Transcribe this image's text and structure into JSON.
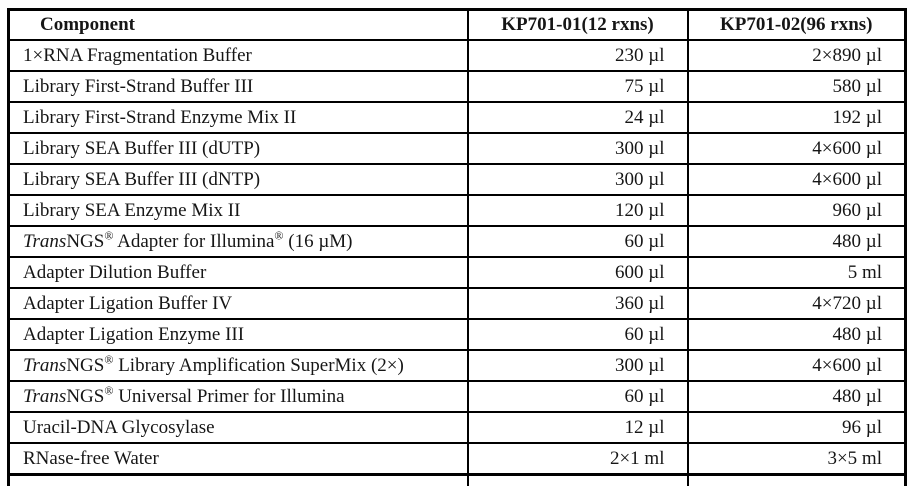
{
  "table": {
    "columns": [
      {
        "label": "Component"
      },
      {
        "label": "KP701-01(12 rxns)"
      },
      {
        "label": "KP701-02(96 rxns)"
      }
    ],
    "rows": [
      {
        "component": [
          {
            "t": "1×RNA Fragmentation Buffer"
          }
        ],
        "qty12": "230 µl",
        "qty96": "2×890 µl"
      },
      {
        "component": [
          {
            "t": "Library First-Strand Buffer III"
          }
        ],
        "qty12": "75 µl",
        "qty96": "580 µl"
      },
      {
        "component": [
          {
            "t": "Library First-Strand Enzyme Mix II"
          }
        ],
        "qty12": "24 µl",
        "qty96": "192 µl"
      },
      {
        "component": [
          {
            "t": "Library SEA Buffer III (dUTP)"
          }
        ],
        "qty12": "300 µl",
        "qty96": "4×600 µl"
      },
      {
        "component": [
          {
            "t": "Library SEA Buffer III (dNTP)"
          }
        ],
        "qty12": "300 µl",
        "qty96": "4×600 µl"
      },
      {
        "component": [
          {
            "t": "Library SEA Enzyme Mix II"
          }
        ],
        "qty12": "120 µl",
        "qty96": "960 µl"
      },
      {
        "component": [
          {
            "t": "Trans",
            "style": "italic"
          },
          {
            "t": "NGS"
          },
          {
            "t": "®",
            "style": "sup"
          },
          {
            "t": " Adapter for Illumina"
          },
          {
            "t": "®",
            "style": "sup"
          },
          {
            "t": " (16 µM)"
          }
        ],
        "qty12": "60 µl",
        "qty96": "480 µl"
      },
      {
        "component": [
          {
            "t": "Adapter Dilution Buffer"
          }
        ],
        "qty12": "600 µl",
        "qty96": "5 ml"
      },
      {
        "component": [
          {
            "t": "Adapter Ligation Buffer IV"
          }
        ],
        "qty12": "360 µl",
        "qty96": "4×720 µl"
      },
      {
        "component": [
          {
            "t": "Adapter Ligation Enzyme III"
          }
        ],
        "qty12": "60 µl",
        "qty96": "480 µl"
      },
      {
        "component": [
          {
            "t": "Trans",
            "style": "italic"
          },
          {
            "t": "NGS"
          },
          {
            "t": "®",
            "style": "sup"
          },
          {
            "t": " Library Amplification SuperMix (2×)"
          }
        ],
        "qty12": "300 µl",
        "qty96": "4×600 µl"
      },
      {
        "component": [
          {
            "t": "Trans",
            "style": "italic"
          },
          {
            "t": "NGS"
          },
          {
            "t": "®",
            "style": "sup"
          },
          {
            "t": " Universal Primer for Illumina"
          }
        ],
        "qty12": "60 µl",
        "qty96": "480 µl"
      },
      {
        "component": [
          {
            "t": "Uracil-DNA Glycosylase"
          }
        ],
        "qty12": "12 µl",
        "qty96": "96 µl"
      },
      {
        "component": [
          {
            "t": "RNase-free Water"
          }
        ],
        "qty12": "2×1 ml",
        "qty96": "3×5 ml"
      }
    ]
  }
}
